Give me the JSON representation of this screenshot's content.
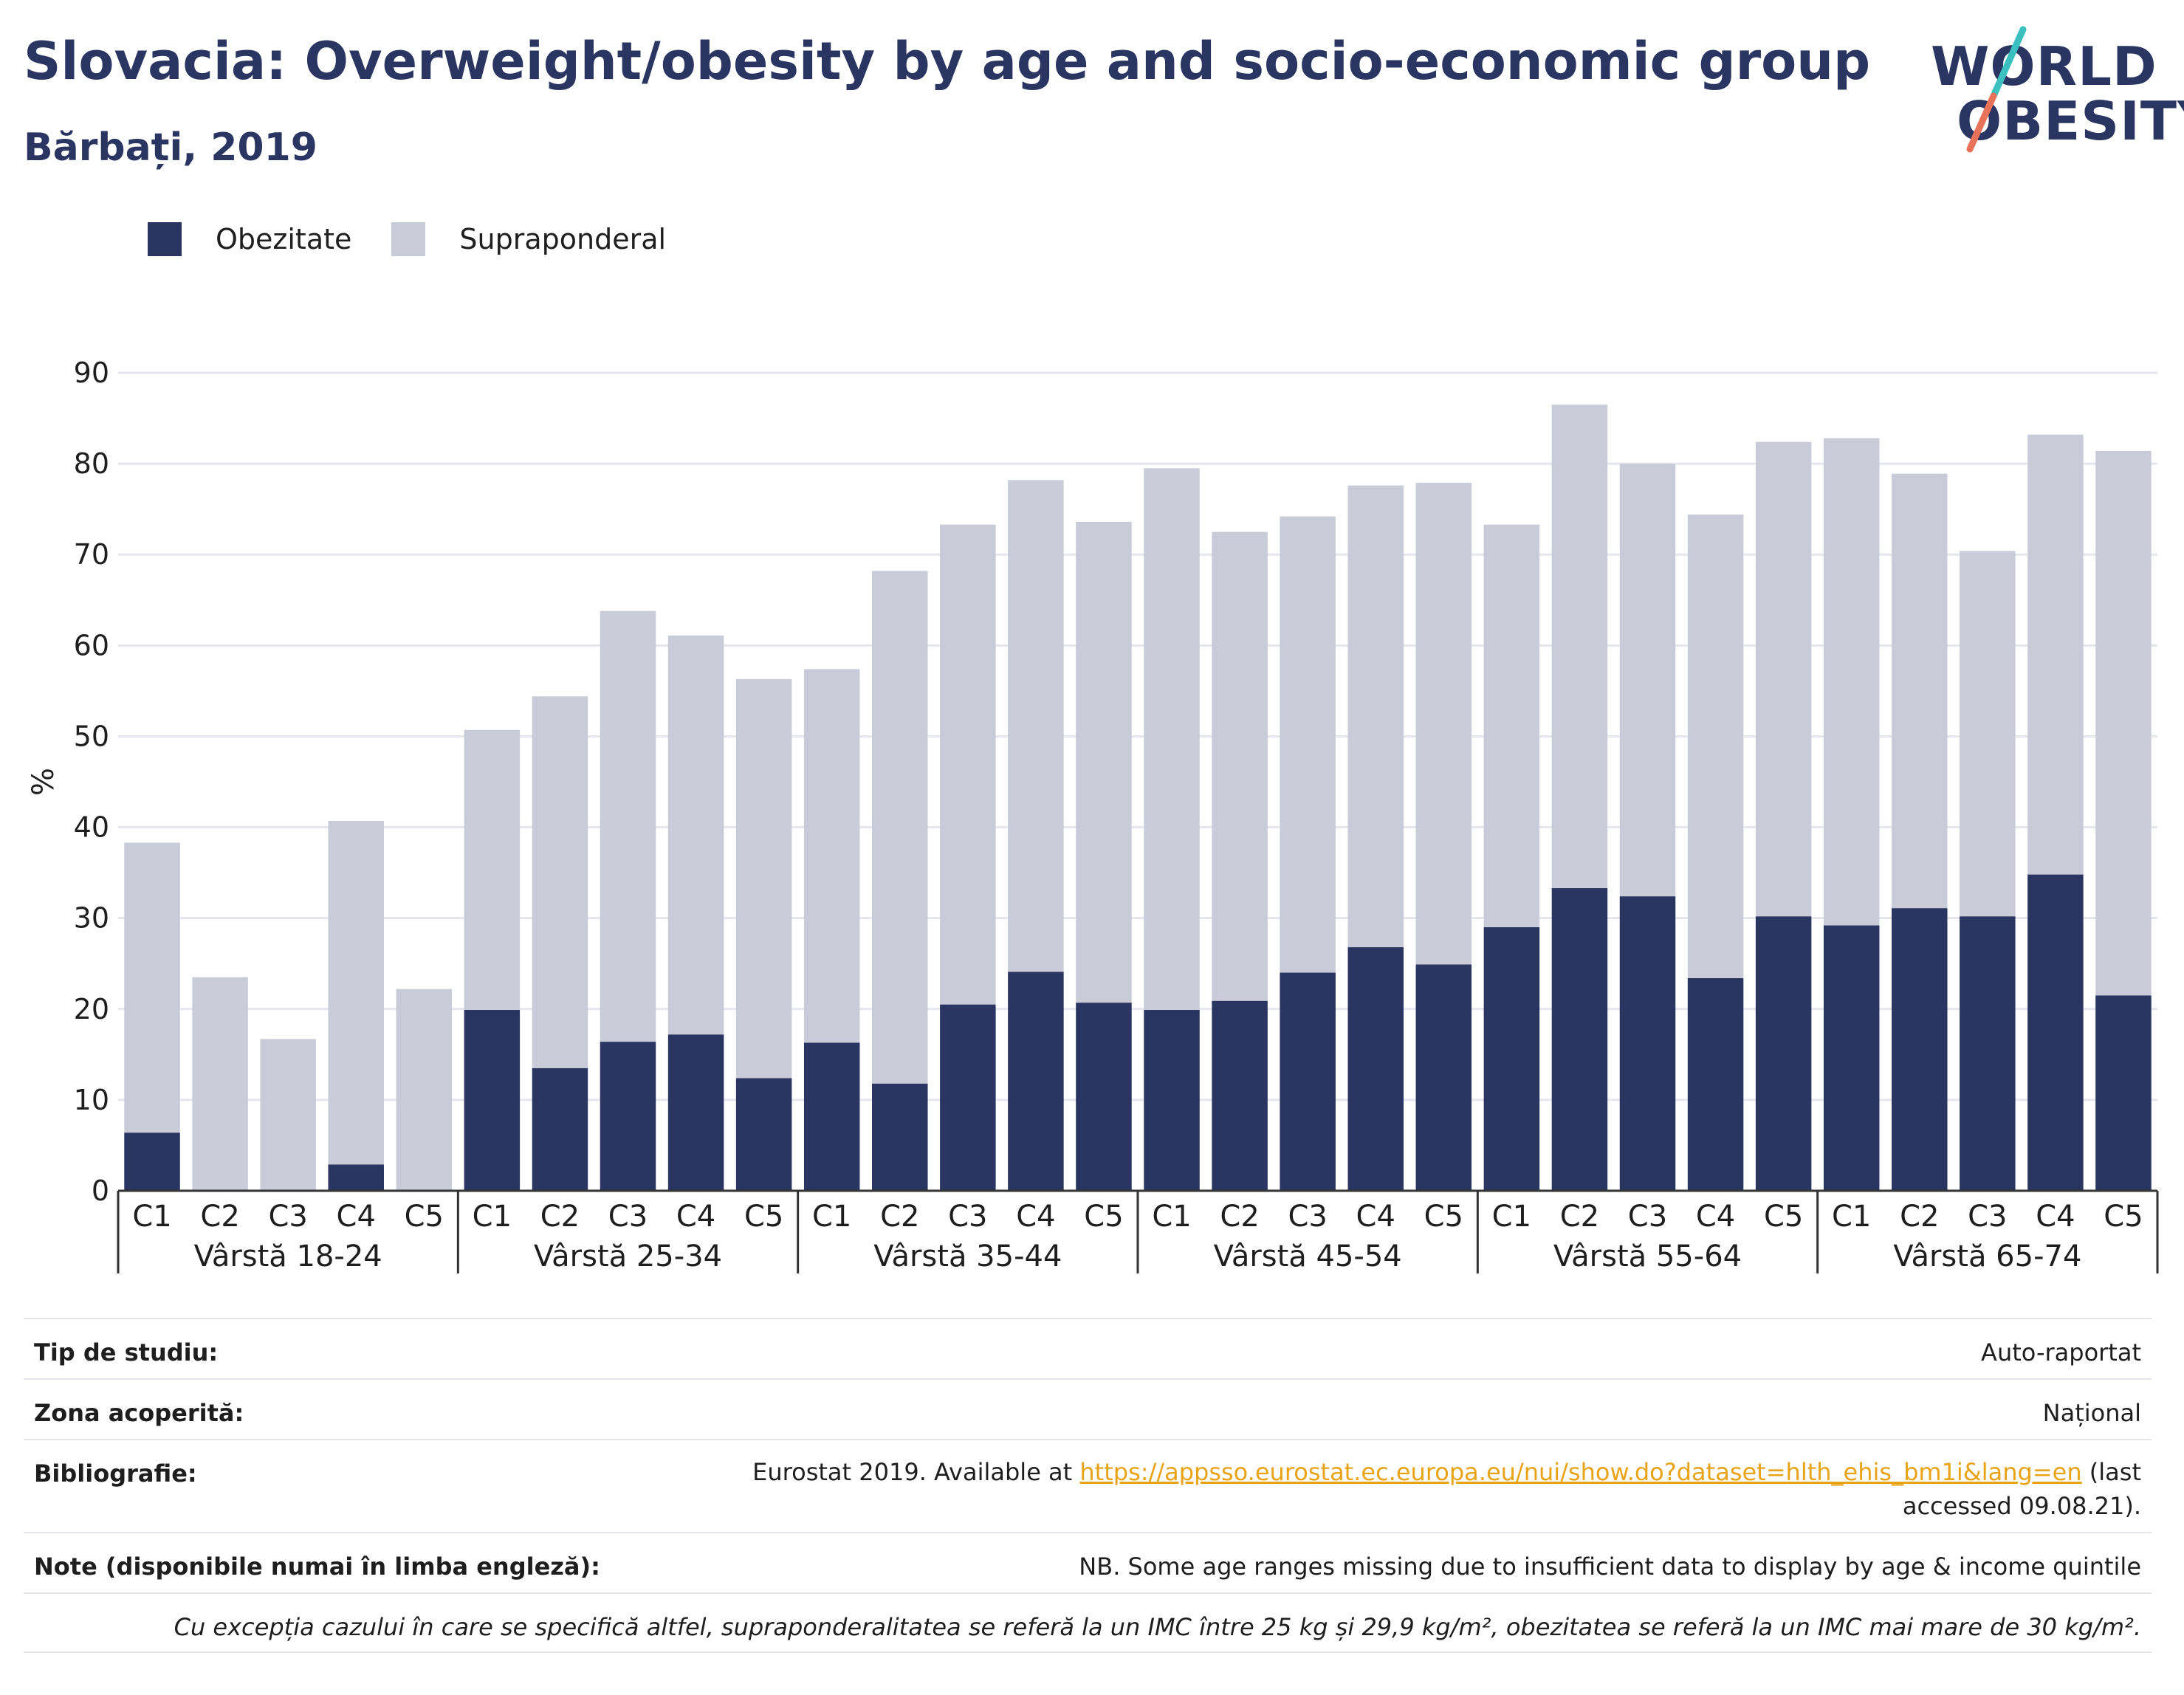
{
  "title": "Slovacia: Overweight/obesity by age and socio-economic group",
  "subtitle": "Bărbați, 2019",
  "logo": {
    "line1": "WORLD",
    "line2": "OBESITY"
  },
  "colors": {
    "obesity": "#2a3561",
    "overweight": "#cacbd8",
    "grid": "#e6e7ee",
    "axis": "#333333",
    "link": "#e8a317",
    "brand": "#2a3561",
    "logo_slash_top": "#3bbfbf",
    "logo_slash_bottom": "#e8735a"
  },
  "legend": [
    {
      "label": "Obezitate",
      "color": "#2a3561"
    },
    {
      "label": "Supraponderal",
      "color": "#cacbd8"
    }
  ],
  "chart_data": {
    "type": "bar",
    "stacked": true,
    "ylabel": "%",
    "ylim": [
      0,
      90
    ],
    "yticks": [
      0,
      10,
      20,
      30,
      40,
      50,
      60,
      70,
      80,
      90
    ],
    "grid": true,
    "legend_position": "top-left",
    "groups": [
      "Vârstă 18-24",
      "Vârstă 25-34",
      "Vârstă 35-44",
      "Vârstă 45-54",
      "Vârstă 55-64",
      "Vârstă 65-74"
    ],
    "categories": [
      "C1",
      "C2",
      "C3",
      "C4",
      "C5"
    ],
    "series": [
      {
        "name": "Obezitate",
        "values": [
          [
            6.4,
            0,
            0,
            2.9,
            0
          ],
          [
            19.9,
            13.5,
            16.4,
            17.2,
            12.4
          ],
          [
            16.3,
            11.8,
            20.5,
            24.1,
            20.7
          ],
          [
            19.9,
            20.9,
            24.0,
            26.8,
            24.9
          ],
          [
            29.0,
            33.3,
            32.4,
            23.4,
            30.2
          ],
          [
            29.2,
            31.1,
            30.2,
            34.8,
            21.5
          ]
        ]
      },
      {
        "name": "Supraponderal",
        "values": [
          [
            31.9,
            23.5,
            16.7,
            37.8,
            22.2
          ],
          [
            30.8,
            40.9,
            47.4,
            43.9,
            43.9
          ],
          [
            41.1,
            56.4,
            52.8,
            54.1,
            52.9
          ],
          [
            59.6,
            51.6,
            50.2,
            50.8,
            53.0
          ],
          [
            44.3,
            53.2,
            47.6,
            51.0,
            52.2
          ],
          [
            53.6,
            47.8,
            40.2,
            48.4,
            59.9
          ]
        ]
      }
    ]
  },
  "info": {
    "study_type": {
      "label": "Tip de studiu:",
      "value": "Auto-raportat"
    },
    "coverage": {
      "label": "Zona acoperită:",
      "value": "Național"
    },
    "bibliography": {
      "label": "Bibliografie:",
      "prefix": "Eurostat 2019. Available at ",
      "link": "https://appsso.eurostat.ec.europa.eu/nui/show.do?dataset=hlth_ehis_bm1i&lang=en",
      "suffix": " (last accessed 09.08.21)."
    },
    "notes": {
      "label": "Note (disponibile numai în limba engleză):",
      "value": "NB. Some age ranges missing due to insufficient data to display by age & income quintile"
    },
    "footnote": "Cu excepția cazului în care se specifică altfel, supraponderalitatea se referă la un IMC între 25 kg și 29,9 kg/m², obezitatea se referă la un IMC mai mare de 30 kg/m²."
  }
}
